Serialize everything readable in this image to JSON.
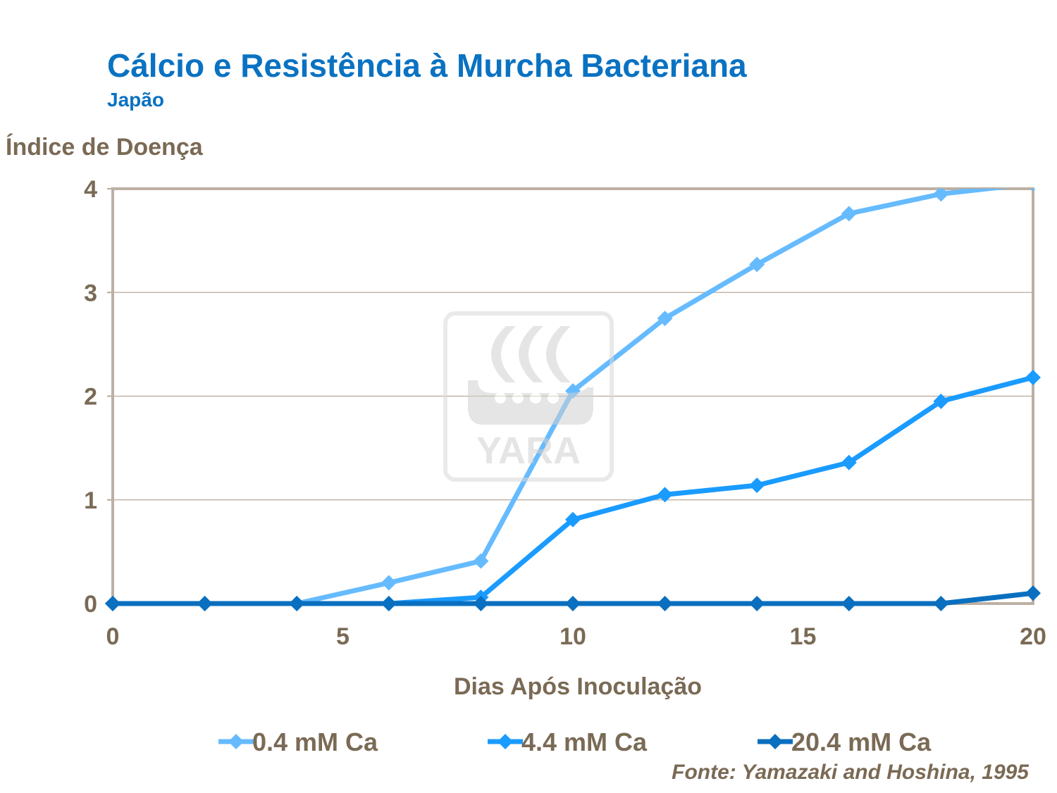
{
  "chart_data": {
    "type": "line",
    "title": "Cálcio e Resistência à Murcha Bacteriana",
    "subtitle": "Japão",
    "xlabel": "Dias Após Inoculação",
    "ylabel": "Índice de Doença",
    "xlim": [
      0,
      20
    ],
    "ylim": [
      0,
      4
    ],
    "xticks": [
      0,
      5,
      10,
      15,
      20
    ],
    "yticks": [
      0,
      1,
      2,
      3,
      4
    ],
    "grid": "horizontal",
    "legend_position": "bottom",
    "x": [
      0,
      2,
      4,
      6,
      8,
      10,
      12,
      14,
      16,
      18,
      20
    ],
    "series": [
      {
        "name": "0.4 mM Ca",
        "color": "#66bbff",
        "values": [
          0,
          0,
          0,
          0.2,
          0.41,
          2.05,
          2.75,
          3.27,
          3.76,
          3.95,
          4.05
        ]
      },
      {
        "name": "4.4 mM Ca",
        "color": "#1a9bff",
        "values": [
          0,
          0,
          0,
          0,
          0.06,
          0.81,
          1.05,
          1.14,
          1.36,
          1.95,
          2.18
        ]
      },
      {
        "name": "20.4 mM Ca",
        "color": "#0a6fbf",
        "values": [
          0,
          0,
          0,
          0,
          0,
          0,
          0,
          0,
          0,
          0,
          0.1
        ]
      }
    ],
    "source": "Fonte: Yamazaki and Hoshina, 1995",
    "watermark": "YARA"
  }
}
